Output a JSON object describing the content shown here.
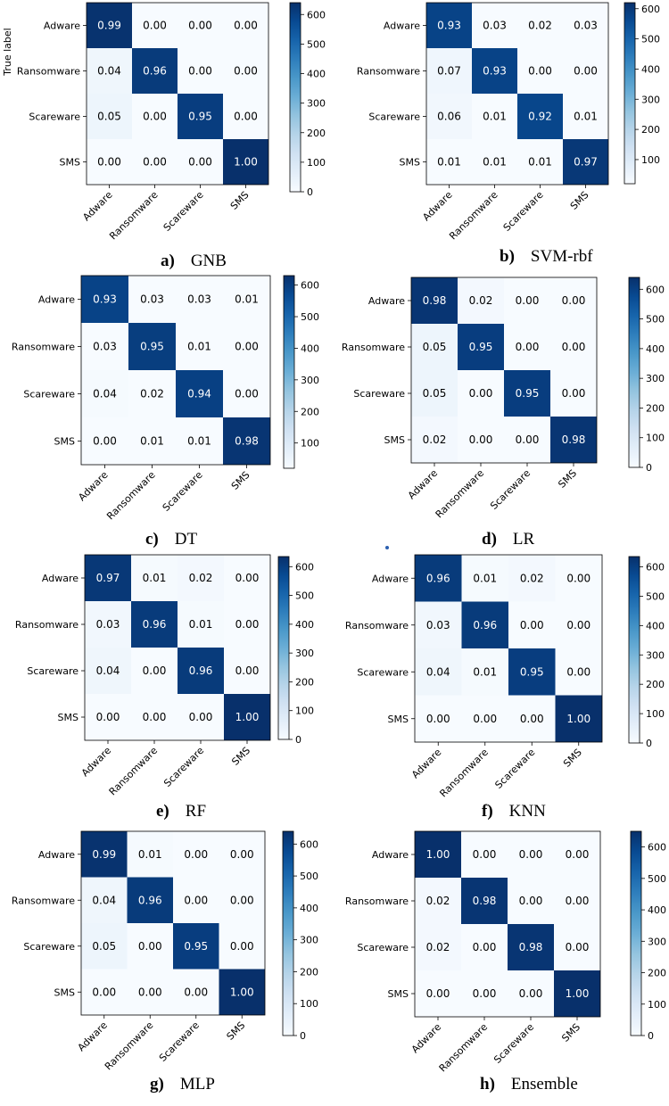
{
  "chart_data": [
    {
      "type": "heatmap",
      "letter": "a)",
      "name": "GNB",
      "ylabel": "True label",
      "categories": [
        "Adware",
        "Ransomware",
        "Scareware",
        "SMS"
      ],
      "matrix": [
        [
          0.99,
          0.0,
          0.0,
          0.0
        ],
        [
          0.04,
          0.96,
          0.0,
          0.0
        ],
        [
          0.05,
          0.0,
          0.95,
          0.0
        ],
        [
          0.0,
          0.0,
          0.0,
          1.0
        ]
      ],
      "colorbar_ticks": [
        0,
        100,
        200,
        300,
        400,
        500,
        600
      ],
      "colorbar_range": [
        0,
        640
      ]
    },
    {
      "type": "heatmap",
      "letter": "b)",
      "name": "SVM-rbf",
      "ylabel": "",
      "categories": [
        "Adware",
        "Ransomware",
        "Scareware",
        "SMS"
      ],
      "matrix": [
        [
          0.93,
          0.03,
          0.02,
          0.03
        ],
        [
          0.07,
          0.93,
          0.0,
          0.0
        ],
        [
          0.06,
          0.01,
          0.92,
          0.01
        ],
        [
          0.01,
          0.01,
          0.01,
          0.97
        ]
      ],
      "colorbar_ticks": [
        100,
        200,
        300,
        400,
        500,
        600
      ],
      "colorbar_range": [
        20,
        620
      ]
    },
    {
      "type": "heatmap",
      "letter": "c)",
      "name": "DT",
      "ylabel": "",
      "categories": [
        "Adware",
        "Ransomware",
        "Scareware",
        "SMS"
      ],
      "matrix": [
        [
          0.93,
          0.03,
          0.03,
          0.01
        ],
        [
          0.03,
          0.95,
          0.01,
          0.0
        ],
        [
          0.04,
          0.02,
          0.94,
          0.0
        ],
        [
          0.0,
          0.01,
          0.01,
          0.98
        ]
      ],
      "colorbar_ticks": [
        100,
        200,
        300,
        400,
        500,
        600
      ],
      "colorbar_range": [
        20,
        630
      ]
    },
    {
      "type": "heatmap",
      "letter": "d)",
      "name": "LR",
      "ylabel": "",
      "categories": [
        "Adware",
        "Ransomware",
        "Scareware",
        "SMS"
      ],
      "matrix": [
        [
          0.98,
          0.02,
          0.0,
          0.0
        ],
        [
          0.05,
          0.95,
          0.0,
          0.0
        ],
        [
          0.05,
          0.0,
          0.95,
          0.0
        ],
        [
          0.02,
          0.0,
          0.0,
          0.98
        ]
      ],
      "colorbar_ticks": [
        0,
        100,
        200,
        300,
        400,
        500,
        600
      ],
      "colorbar_range": [
        0,
        640
      ]
    },
    {
      "type": "heatmap",
      "letter": "e)",
      "name": "RF",
      "ylabel": "",
      "categories": [
        "Adware",
        "Ransomware",
        "Scareware",
        "SMS"
      ],
      "matrix": [
        [
          0.97,
          0.01,
          0.02,
          0.0
        ],
        [
          0.03,
          0.96,
          0.01,
          0.0
        ],
        [
          0.04,
          0.0,
          0.96,
          0.0
        ],
        [
          0.0,
          0.0,
          0.0,
          1.0
        ]
      ],
      "colorbar_ticks": [
        0,
        100,
        200,
        300,
        400,
        500,
        600
      ],
      "colorbar_range": [
        0,
        635
      ]
    },
    {
      "type": "heatmap",
      "letter": "f)",
      "name": "KNN",
      "ylabel": "",
      "categories": [
        "Adware",
        "Ransomware",
        "Scareware",
        "SMS"
      ],
      "matrix": [
        [
          0.96,
          0.01,
          0.02,
          0.0
        ],
        [
          0.03,
          0.96,
          0.0,
          0.0
        ],
        [
          0.04,
          0.01,
          0.95,
          0.0
        ],
        [
          0.0,
          0.0,
          0.0,
          1.0
        ]
      ],
      "colorbar_ticks": [
        0,
        100,
        200,
        300,
        400,
        500,
        600
      ],
      "colorbar_range": [
        0,
        635
      ]
    },
    {
      "type": "heatmap",
      "letter": "g)",
      "name": "MLP",
      "ylabel": "",
      "categories": [
        "Adware",
        "Ransomware",
        "Scareware",
        "SMS"
      ],
      "matrix": [
        [
          0.99,
          0.01,
          0.0,
          0.0
        ],
        [
          0.04,
          0.96,
          0.0,
          0.0
        ],
        [
          0.05,
          0.0,
          0.95,
          0.0
        ],
        [
          0.0,
          0.0,
          0.0,
          1.0
        ]
      ],
      "colorbar_ticks": [
        0,
        100,
        200,
        300,
        400,
        500,
        600
      ],
      "colorbar_range": [
        0,
        640
      ]
    },
    {
      "type": "heatmap",
      "letter": "h)",
      "name": "Ensemble",
      "ylabel": "",
      "categories": [
        "Adware",
        "Ransomware",
        "Scareware",
        "SMS"
      ],
      "matrix": [
        [
          1.0,
          0.0,
          0.0,
          0.0
        ],
        [
          0.02,
          0.98,
          0.0,
          0.0
        ],
        [
          0.02,
          0.0,
          0.98,
          0.0
        ],
        [
          0.0,
          0.0,
          0.0,
          1.0
        ]
      ],
      "colorbar_ticks": [
        0,
        100,
        200,
        300,
        400,
        500,
        600
      ],
      "colorbar_range": [
        0,
        650
      ]
    }
  ],
  "colormap": {
    "low": "#f7fbff",
    "high": "#08306b"
  }
}
